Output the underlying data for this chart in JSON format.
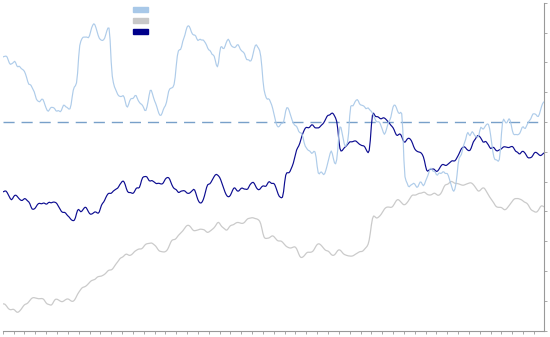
{
  "background_color": "#ffffff",
  "plot_bg_color": "#ffffff",
  "line1_color": "#a8c8e8",
  "line2_color": "#c8c8c8",
  "line3_color": "#00008b",
  "hline_color": "#6090c0",
  "hline_style": "--",
  "hline_value": 0.66,
  "legend_colors": [
    "#a8c8e8",
    "#c8c8c8",
    "#00008b"
  ],
  "n_points": 500,
  "seed": 77,
  "ylim_low": 0.1,
  "ylim_high": 0.98,
  "spine_color": "#999999",
  "tick_color": "#999999"
}
